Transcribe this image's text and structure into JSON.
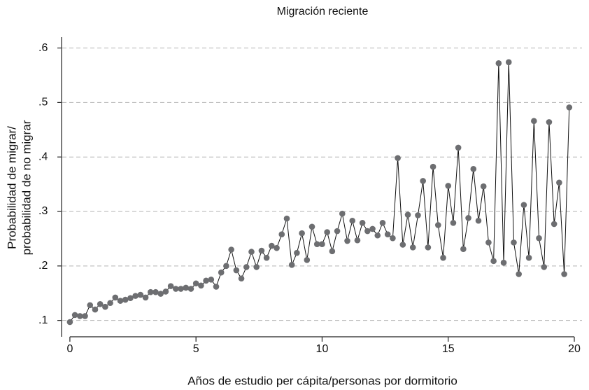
{
  "chart_data": {
    "type": "line",
    "title": "Migración reciente",
    "xlabel": "Años de estudio per cápita/personas por dormitorio",
    "ylabel": [
      "Probabilidad de migrar/",
      "probabilidad de no migrar"
    ],
    "x": [
      0,
      0.2,
      0.4,
      0.6,
      0.8,
      1,
      1.2,
      1.4,
      1.6,
      1.8,
      2,
      2.2,
      2.4,
      2.6,
      2.8,
      3,
      3.2,
      3.4,
      3.6,
      3.8,
      4,
      4.2,
      4.4,
      4.6,
      4.8,
      5,
      5.2,
      5.4,
      5.6,
      5.8,
      6,
      6.2,
      6.4,
      6.6,
      6.8,
      7,
      7.2,
      7.4,
      7.6,
      7.8,
      8,
      8.2,
      8.4,
      8.6,
      8.8,
      9,
      9.2,
      9.4,
      9.6,
      9.8,
      10,
      10.2,
      10.4,
      10.6,
      10.8,
      11,
      11.2,
      11.4,
      11.6,
      11.8,
      12,
      12.2,
      12.4,
      12.6,
      12.8,
      13,
      13.2,
      13.4,
      13.6,
      13.8,
      14,
      14.2,
      14.4,
      14.6,
      14.8,
      15,
      15.2,
      15.4,
      15.6,
      15.8,
      16,
      16.2,
      16.4,
      16.6,
      16.8,
      17,
      17.2,
      17.4,
      17.6,
      17.8,
      18,
      18.2,
      18.4,
      18.6,
      18.8,
      19,
      19.2,
      19.4,
      19.6,
      19.8
    ],
    "values": [
      0.097,
      0.11,
      0.108,
      0.108,
      0.128,
      0.12,
      0.13,
      0.125,
      0.132,
      0.142,
      0.136,
      0.138,
      0.141,
      0.145,
      0.147,
      0.142,
      0.152,
      0.152,
      0.149,
      0.153,
      0.163,
      0.158,
      0.158,
      0.16,
      0.158,
      0.168,
      0.164,
      0.173,
      0.175,
      0.162,
      0.188,
      0.2,
      0.23,
      0.192,
      0.177,
      0.198,
      0.226,
      0.198,
      0.228,
      0.215,
      0.237,
      0.233,
      0.258,
      0.287,
      0.202,
      0.224,
      0.26,
      0.211,
      0.272,
      0.24,
      0.24,
      0.262,
      0.227,
      0.264,
      0.296,
      0.246,
      0.283,
      0.247,
      0.279,
      0.264,
      0.268,
      0.256,
      0.279,
      0.258,
      0.251,
      0.398,
      0.239,
      0.294,
      0.234,
      0.293,
      0.356,
      0.234,
      0.382,
      0.275,
      0.215,
      0.347,
      0.279,
      0.417,
      0.231,
      0.288,
      0.378,
      0.283,
      0.346,
      0.243,
      0.209,
      0.572,
      0.206,
      0.574,
      0.243,
      0.185,
      0.312,
      0.215,
      0.466,
      0.251,
      0.198,
      0.464,
      0.277,
      0.353,
      0.185,
      0.491
    ],
    "line_color": "#111111",
    "marker_color": "#6d6e71",
    "xlim": [
      -0.33,
      20
    ],
    "ylim": [
      0.07,
      0.62
    ],
    "xticks": [
      0,
      5,
      10,
      15,
      20
    ],
    "yticks": [
      {
        "value": 0.1,
        "label": ".1"
      },
      {
        "value": 0.2,
        "label": ".2"
      },
      {
        "value": 0.3,
        "label": ".3"
      },
      {
        "value": 0.4,
        "label": ".4"
      },
      {
        "value": 0.5,
        "label": ".5"
      },
      {
        "value": 0.6,
        "label": ".6"
      }
    ],
    "grid": true
  }
}
